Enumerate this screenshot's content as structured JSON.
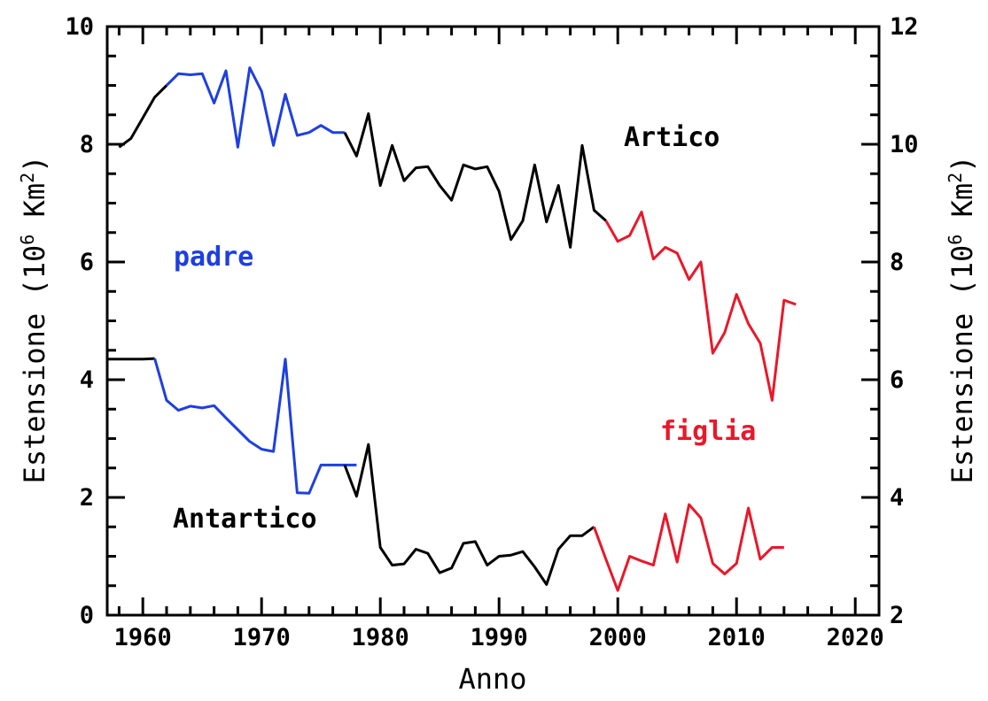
{
  "chart_data": {
    "type": "line",
    "title": "",
    "xlabel": "Anno",
    "ylabel": "Estensione (10",
    "ylabel_sup": "6",
    "ylabel_unit": "Km",
    "ylabel_unit_sup": "2",
    "ylabel_close": ")",
    "ylabel_right": "Estensione (10",
    "xlim": [
      1957,
      2022
    ],
    "ylim": [
      0,
      10
    ],
    "ylim_right": [
      2,
      12
    ],
    "x_ticks": [
      1960,
      1970,
      1980,
      1990,
      2000,
      2010,
      2020
    ],
    "y_ticks": [
      0,
      2,
      4,
      6,
      8,
      10
    ],
    "y_ticks_right": [
      2,
      4,
      6,
      8,
      10,
      12
    ],
    "grid": false,
    "colors": {
      "padre": "#1f3fe0",
      "figlia": "#e8182a",
      "observed": "#000000"
    },
    "annotations": {
      "artico": "Artico",
      "antartico": "Antartico",
      "padre": "padre",
      "figlia": "figlia"
    },
    "series": [
      {
        "name": "Artico",
        "color": "#000000",
        "x": [
          1958,
          1959,
          1960,
          1961,
          1962
        ],
        "y": [
          7.95,
          8.1,
          8.45,
          8.8,
          9.0
        ]
      },
      {
        "name": "padre",
        "color": "#1f3fe0",
        "x": [
          1962,
          1963,
          1964,
          1965,
          1966,
          1967,
          1968,
          1969,
          1970,
          1971,
          1972,
          1973,
          1974,
          1975,
          1976,
          1977
        ],
        "y": [
          9.0,
          9.2,
          9.18,
          9.2,
          8.7,
          9.25,
          7.95,
          9.3,
          8.9,
          7.98,
          8.85,
          8.15,
          8.2,
          8.32,
          8.2,
          8.2
        ]
      },
      {
        "name": "Artico",
        "color": "#000000",
        "x": [
          1977,
          1978,
          1979,
          1980,
          1981,
          1982,
          1983,
          1984,
          1985,
          1986,
          1987,
          1988,
          1989,
          1990,
          1991,
          1992,
          1993,
          1994,
          1995,
          1996,
          1997,
          1998,
          1999
        ],
        "y": [
          8.2,
          7.8,
          8.52,
          7.3,
          7.98,
          7.38,
          7.6,
          7.62,
          7.3,
          7.05,
          7.65,
          7.58,
          7.62,
          7.2,
          6.38,
          6.7,
          7.65,
          6.68,
          7.3,
          6.25,
          7.98,
          6.88,
          6.7
        ]
      },
      {
        "name": "figlia",
        "color": "#e8182a",
        "x": [
          1999,
          2000,
          2001,
          2002,
          2003,
          2004,
          2005,
          2006,
          2007,
          2008,
          2009,
          2010,
          2011,
          2012,
          2013,
          2014,
          2015
        ],
        "y": [
          6.7,
          6.35,
          6.45,
          6.85,
          6.05,
          6.25,
          6.15,
          5.7,
          6.0,
          4.45,
          4.8,
          5.45,
          4.95,
          4.62,
          3.65,
          5.35,
          5.28
        ]
      },
      {
        "name": "Antartico",
        "color": "#000000",
        "x": [
          1957,
          1958,
          1959,
          1960,
          1961
        ],
        "y": [
          4.35,
          4.35,
          4.35,
          4.35,
          4.36
        ]
      },
      {
        "name": "padre",
        "color": "#1f3fe0",
        "x": [
          1961,
          1962,
          1963,
          1964,
          1965,
          1966,
          1967,
          1968,
          1969,
          1970,
          1971,
          1972,
          1973,
          1974,
          1975,
          1976,
          1977,
          1978
        ],
        "y": [
          4.36,
          3.65,
          3.48,
          3.55,
          3.52,
          3.56,
          3.35,
          3.15,
          2.95,
          2.82,
          2.78,
          4.35,
          2.08,
          2.07,
          2.55,
          2.55,
          2.55,
          2.55
        ]
      },
      {
        "name": "Antartico",
        "color": "#000000",
        "x": [
          1977,
          1978,
          1979,
          1980,
          1981,
          1982,
          1983,
          1984,
          1985,
          1986,
          1987,
          1988,
          1989,
          1990,
          1991,
          1992,
          1993,
          1994,
          1995,
          1996,
          1997,
          1998
        ],
        "y": [
          2.55,
          2.02,
          2.9,
          1.15,
          0.85,
          0.87,
          1.12,
          1.05,
          0.72,
          0.8,
          1.22,
          1.25,
          0.85,
          1.0,
          1.02,
          1.08,
          0.82,
          0.52,
          1.12,
          1.35,
          1.35,
          1.5
        ]
      },
      {
        "name": "figlia",
        "color": "#e8182a",
        "x": [
          1998,
          1999,
          2000,
          2001,
          2002,
          2003,
          2004,
          2005,
          2006,
          2007,
          2008,
          2009,
          2010,
          2011,
          2012,
          2013,
          2014
        ],
        "y": [
          1.5,
          0.95,
          0.42,
          1.0,
          0.92,
          0.85,
          1.72,
          0.9,
          1.88,
          1.65,
          0.88,
          0.7,
          0.88,
          1.82,
          0.95,
          1.15,
          1.15
        ]
      }
    ]
  }
}
